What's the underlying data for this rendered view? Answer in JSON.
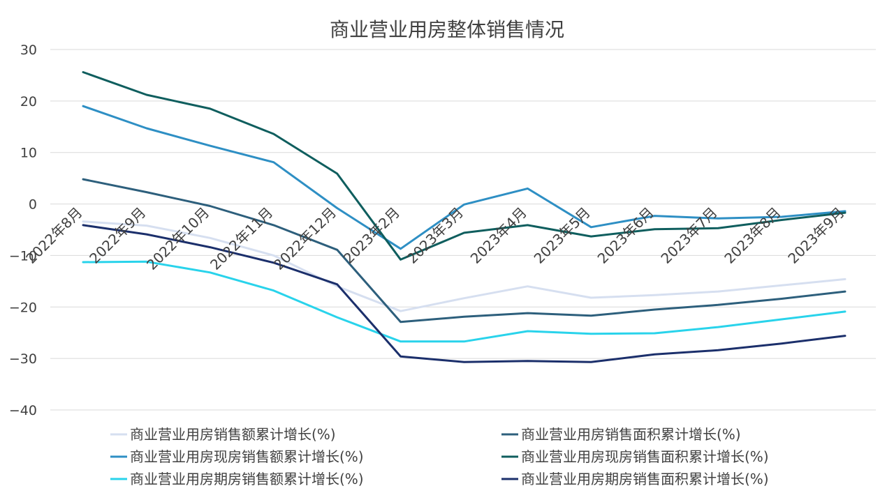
{
  "chart_data": {
    "type": "line",
    "title": "商业营业用房整体销售情况",
    "xlabel": "",
    "ylabel": "",
    "ylim": [
      -40,
      30
    ],
    "yticks": [
      30,
      20,
      10,
      0,
      -10,
      -20,
      -30,
      -40
    ],
    "ytick_labels": [
      "30",
      "20",
      "10",
      "0",
      "−10",
      "−20",
      "−30",
      "−40"
    ],
    "grid": true,
    "legend_position": "bottom",
    "categories": [
      "2022年8月",
      "2022年9月",
      "2022年10月",
      "2022年11月",
      "2022年12月",
      "2023年2月",
      "2023年3月",
      "2023年4月",
      "2023年5月",
      "2023年6月",
      "2023年7月",
      "2023年8月",
      "2023年9月"
    ],
    "series": [
      {
        "name": "商业营业用房销售额累计增长(%)",
        "color": "#d6dff0",
        "values": [
          -3.4,
          -4.2,
          -6.6,
          -10.0,
          -16.0,
          -20.8,
          -18.3,
          -16.0,
          -18.2,
          -17.7,
          -17.0,
          -15.8,
          -14.6
        ]
      },
      {
        "name": "商业营业用房销售面积累计增长(%)",
        "color": "#2d5f7c",
        "values": [
          4.8,
          2.3,
          -0.4,
          -4.1,
          -8.9,
          -22.9,
          -21.9,
          -21.2,
          -21.7,
          -20.5,
          -19.6,
          -18.4,
          -17.0
        ]
      },
      {
        "name": "商业营业用房现房销售额累计增长(%)",
        "color": "#2e8fc4",
        "values": [
          19.0,
          14.7,
          11.3,
          8.1,
          -0.8,
          -8.7,
          -0.1,
          3.0,
          -4.5,
          -2.3,
          -2.8,
          -2.5,
          -1.4
        ]
      },
      {
        "name": "商业营业用房现房销售面积累计增长(%)",
        "color": "#0f5e5e",
        "values": [
          25.6,
          21.2,
          18.5,
          13.6,
          5.9,
          -10.8,
          -5.6,
          -4.1,
          -6.3,
          -4.9,
          -4.7,
          -3.1,
          -1.7
        ]
      },
      {
        "name": "商业营业用房期房销售额累计增长(%)",
        "color": "#29d3eb",
        "values": [
          -11.3,
          -11.2,
          -13.3,
          -16.8,
          -22.0,
          -26.7,
          -26.7,
          -24.7,
          -25.2,
          -25.1,
          -23.9,
          -22.4,
          -20.9
        ]
      },
      {
        "name": "商业营业用房期房销售面积累计增长(%)",
        "color": "#1b2f6b",
        "values": [
          -4.1,
          -5.9,
          -8.4,
          -11.4,
          -15.6,
          -29.6,
          -30.7,
          -30.5,
          -30.7,
          -29.2,
          -28.4,
          -27.1,
          -25.6
        ]
      }
    ]
  }
}
